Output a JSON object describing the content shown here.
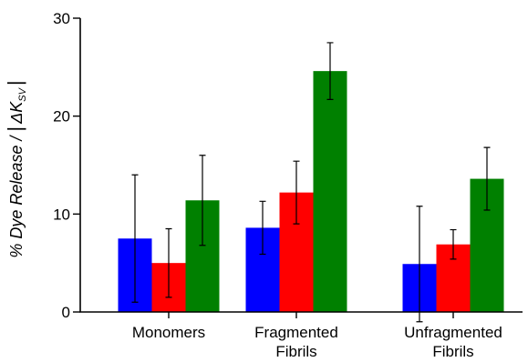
{
  "chart_data": {
    "type": "bar",
    "title": "",
    "xlabel": "",
    "ylabel": {
      "prefix": "% Dye Release / ",
      "delta": "ΔK",
      "subscript": "SV"
    },
    "ylim": [
      0,
      30
    ],
    "yticks": [
      "0",
      "10",
      "20",
      "30"
    ],
    "categories": [
      [
        "Monomers"
      ],
      [
        "Fragmented",
        "Fibrils"
      ],
      [
        "Unfragmented",
        "Fibrils"
      ]
    ],
    "series": [
      {
        "color": "#0000ff",
        "values": [
          7.5,
          8.6,
          4.9
        ],
        "errors": [
          6.5,
          2.7,
          5.9
        ]
      },
      {
        "color": "#ff0000",
        "values": [
          5.0,
          12.2,
          6.9
        ],
        "errors": [
          3.5,
          3.2,
          1.5
        ]
      },
      {
        "color": "#008000",
        "values": [
          11.4,
          24.6,
          13.6
        ],
        "errors": [
          4.6,
          2.9,
          3.2
        ]
      }
    ],
    "grid": false,
    "legend": "none"
  }
}
